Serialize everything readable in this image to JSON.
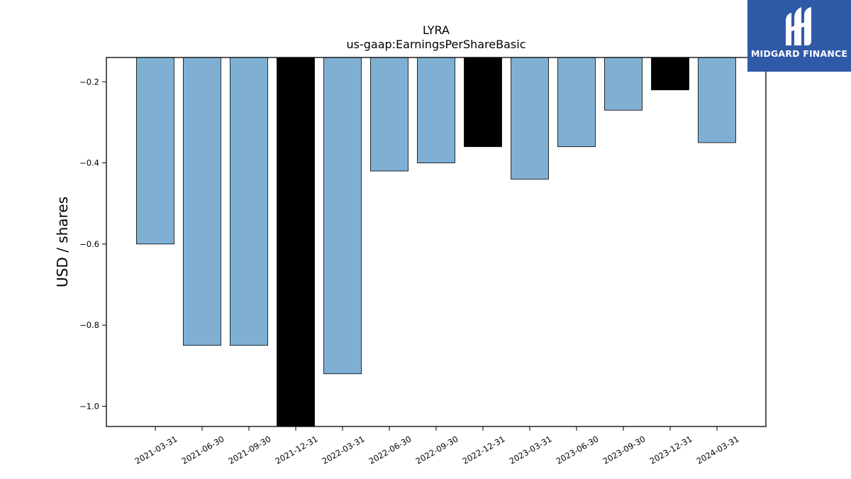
{
  "chart_data": {
    "type": "bar",
    "title": "LYRA",
    "subtitle": "us-gaap:EarningsPerShareBasic",
    "xlabel": "",
    "ylabel": "USD / shares",
    "categories": [
      "2021-03-31",
      "2021-06-30",
      "2021-09-30",
      "2021-12-31",
      "2022-03-31",
      "2022-06-30",
      "2022-09-30",
      "2022-12-31",
      "2023-03-31",
      "2023-06-30",
      "2023-09-30",
      "2023-12-31",
      "2024-03-31"
    ],
    "values": [
      -0.6,
      -0.85,
      -0.85,
      -1.05,
      -0.92,
      -0.42,
      -0.4,
      -0.36,
      -0.44,
      -0.36,
      -0.27,
      -0.22,
      -0.35
    ],
    "highlighted": [
      "2021-12-31",
      "2022-12-31",
      "2023-12-31"
    ],
    "ylim": [
      -1.05,
      -0.14
    ],
    "yticks": [
      -1.0,
      -0.8,
      -0.6,
      -0.4,
      -0.2
    ],
    "colors": {
      "bar": "#7fb0d4",
      "highlight": "#000000",
      "edge": "#000000"
    },
    "grid": false
  },
  "logo": {
    "text": "MIDGARD FINANCE",
    "icon": "midgard-logo-icon"
  }
}
